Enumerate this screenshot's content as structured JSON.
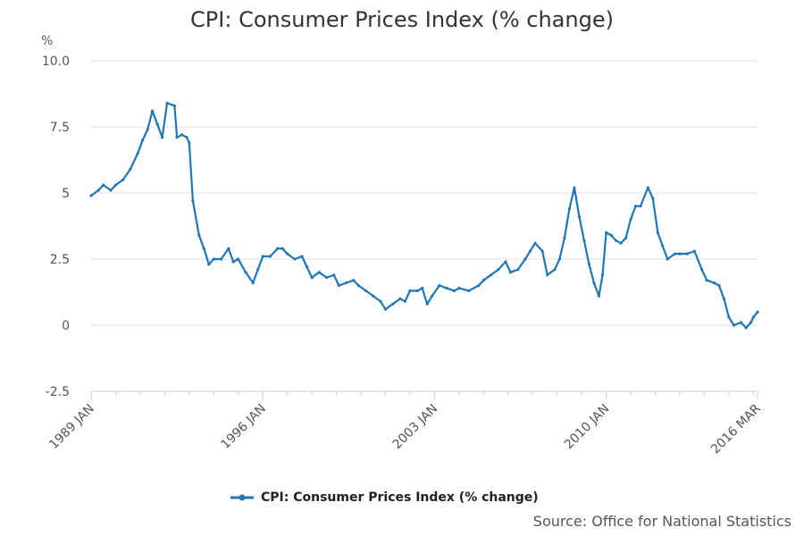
{
  "chart_data": {
    "type": "line",
    "title": "CPI: Consumer Prices Index (% change)",
    "ylabel": "%",
    "xlabel": "",
    "ylim": [
      -2.5,
      10
    ],
    "yticks": [
      {
        "value": 10,
        "label": "10.0"
      },
      {
        "value": 7.5,
        "label": "7.5"
      },
      {
        "value": 5,
        "label": "5"
      },
      {
        "value": 2.5,
        "label": "2.5"
      },
      {
        "value": 0,
        "label": "0"
      },
      {
        "value": -2.5,
        "label": "-2.5"
      }
    ],
    "xticks": [
      {
        "t": 1989.0,
        "label": "1989 JAN"
      },
      {
        "t": 1996.0,
        "label": "1996 JAN"
      },
      {
        "t": 2003.0,
        "label": "2003 JAN"
      },
      {
        "t": 2010.0,
        "label": "2010 JAN"
      },
      {
        "t": 2016.17,
        "label": "2016 MAR"
      }
    ],
    "xlim": [
      1989.0,
      2016.17
    ],
    "grid": true,
    "legend": "bottom",
    "series": [
      {
        "name": "CPI: Consumer Prices Index (% change)",
        "color": "#1f78b4",
        "points": [
          [
            1989.0,
            4.9
          ],
          [
            1989.3,
            5.1
          ],
          [
            1989.5,
            5.3
          ],
          [
            1989.8,
            5.1
          ],
          [
            1990.0,
            5.3
          ],
          [
            1990.3,
            5.5
          ],
          [
            1990.6,
            5.9
          ],
          [
            1990.9,
            6.5
          ],
          [
            1991.1,
            7.0
          ],
          [
            1991.3,
            7.4
          ],
          [
            1991.5,
            8.1
          ],
          [
            1991.7,
            7.6
          ],
          [
            1991.9,
            7.1
          ],
          [
            1992.1,
            8.4
          ],
          [
            1992.4,
            8.3
          ],
          [
            1992.5,
            7.1
          ],
          [
            1992.7,
            7.2
          ],
          [
            1992.9,
            7.1
          ],
          [
            1993.0,
            6.9
          ],
          [
            1993.15,
            4.7
          ],
          [
            1993.4,
            3.4
          ],
          [
            1993.6,
            2.9
          ],
          [
            1993.8,
            2.3
          ],
          [
            1994.0,
            2.5
          ],
          [
            1994.3,
            2.5
          ],
          [
            1994.6,
            2.9
          ],
          [
            1994.8,
            2.4
          ],
          [
            1995.0,
            2.5
          ],
          [
            1995.3,
            2.0
          ],
          [
            1995.6,
            1.6
          ],
          [
            1995.8,
            2.1
          ],
          [
            1996.0,
            2.6
          ],
          [
            1996.3,
            2.6
          ],
          [
            1996.6,
            2.9
          ],
          [
            1996.8,
            2.9
          ],
          [
            1997.0,
            2.7
          ],
          [
            1997.3,
            2.5
          ],
          [
            1997.6,
            2.6
          ],
          [
            1997.8,
            2.2
          ],
          [
            1998.0,
            1.8
          ],
          [
            1998.3,
            2.0
          ],
          [
            1998.6,
            1.8
          ],
          [
            1998.9,
            1.9
          ],
          [
            1999.1,
            1.5
          ],
          [
            1999.4,
            1.6
          ],
          [
            1999.7,
            1.7
          ],
          [
            1999.9,
            1.5
          ],
          [
            2000.2,
            1.3
          ],
          [
            2000.5,
            1.1
          ],
          [
            2000.8,
            0.9
          ],
          [
            2001.0,
            0.6
          ],
          [
            2001.3,
            0.8
          ],
          [
            2001.6,
            1.0
          ],
          [
            2001.8,
            0.9
          ],
          [
            2002.0,
            1.3
          ],
          [
            2002.3,
            1.3
          ],
          [
            2002.5,
            1.4
          ],
          [
            2002.7,
            0.8
          ],
          [
            2002.9,
            1.1
          ],
          [
            2003.2,
            1.5
          ],
          [
            2003.5,
            1.4
          ],
          [
            2003.8,
            1.3
          ],
          [
            2004.0,
            1.4
          ],
          [
            2004.4,
            1.3
          ],
          [
            2004.8,
            1.5
          ],
          [
            2005.0,
            1.7
          ],
          [
            2005.3,
            1.9
          ],
          [
            2005.6,
            2.1
          ],
          [
            2005.9,
            2.4
          ],
          [
            2006.1,
            2.0
          ],
          [
            2006.4,
            2.1
          ],
          [
            2006.7,
            2.5
          ],
          [
            2006.9,
            2.8
          ],
          [
            2007.1,
            3.1
          ],
          [
            2007.4,
            2.8
          ],
          [
            2007.6,
            1.9
          ],
          [
            2007.9,
            2.1
          ],
          [
            2008.1,
            2.5
          ],
          [
            2008.3,
            3.3
          ],
          [
            2008.5,
            4.4
          ],
          [
            2008.7,
            5.2
          ],
          [
            2008.9,
            4.1
          ],
          [
            2009.1,
            3.2
          ],
          [
            2009.3,
            2.3
          ],
          [
            2009.5,
            1.6
          ],
          [
            2009.7,
            1.1
          ],
          [
            2009.85,
            1.9
          ],
          [
            2010.0,
            3.5
          ],
          [
            2010.2,
            3.4
          ],
          [
            2010.4,
            3.2
          ],
          [
            2010.6,
            3.1
          ],
          [
            2010.8,
            3.3
          ],
          [
            2011.0,
            4.0
          ],
          [
            2011.2,
            4.5
          ],
          [
            2011.4,
            4.5
          ],
          [
            2011.7,
            5.2
          ],
          [
            2011.9,
            4.8
          ],
          [
            2012.1,
            3.5
          ],
          [
            2012.3,
            3.0
          ],
          [
            2012.5,
            2.5
          ],
          [
            2012.8,
            2.7
          ],
          [
            2013.0,
            2.7
          ],
          [
            2013.3,
            2.7
          ],
          [
            2013.6,
            2.8
          ],
          [
            2013.9,
            2.1
          ],
          [
            2014.1,
            1.7
          ],
          [
            2014.4,
            1.6
          ],
          [
            2014.6,
            1.5
          ],
          [
            2014.8,
            1.0
          ],
          [
            2015.0,
            0.3
          ],
          [
            2015.2,
            0.0
          ],
          [
            2015.5,
            0.1
          ],
          [
            2015.7,
            -0.1
          ],
          [
            2015.9,
            0.1
          ],
          [
            2016.0,
            0.3
          ],
          [
            2016.17,
            0.5
          ]
        ]
      }
    ],
    "source": "Source: Office for National Statistics"
  }
}
